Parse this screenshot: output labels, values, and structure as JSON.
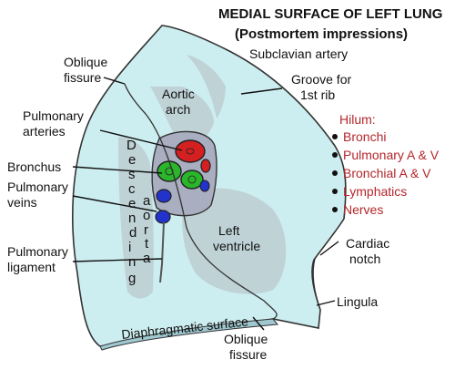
{
  "title": {
    "line1": "MEDIAL SURFACE OF LEFT  LUNG",
    "line2": "(Postmortem impressions)"
  },
  "labels": {
    "oblique_fissure_top_1": "Oblique",
    "oblique_fissure_top_2": "fissure",
    "subclavian_artery": "Subclavian artery",
    "groove_1": "Groove for",
    "groove_2": "1st rib",
    "aortic_arch_1": "Aortic",
    "aortic_arch_2": "arch",
    "pulmonary_arteries_1": "Pulmonary",
    "pulmonary_arteries_2": "arteries",
    "bronchus": "Bronchus",
    "pulmonary_veins_1": "Pulmonary",
    "pulmonary_veins_2": "veins",
    "pulmonary_ligament_1": "Pulmonary",
    "pulmonary_ligament_2": "ligament",
    "left_ventricle_1": "Left",
    "left_ventricle_2": "ventricle",
    "cardiac_notch_1": "Cardiac",
    "cardiac_notch_2": "notch",
    "lingula": "Lingula",
    "diaphragmatic_surface": "Diaphragmatic surface",
    "oblique_fissure_bottom_1": "Oblique",
    "oblique_fissure_bottom_2": "fissure",
    "descending": [
      "D",
      "e",
      "s",
      "c",
      "e",
      "n",
      "d",
      "i",
      "n",
      "g"
    ],
    "aorta": [
      "a",
      "o",
      "r",
      "t",
      "a"
    ]
  },
  "hilum": {
    "heading": "Hilum:",
    "items": [
      "Bronchi",
      "Pulmonary A & V",
      "Bronchial A & V",
      "Lymphatics",
      "Nerves"
    ]
  },
  "colors": {
    "lung_fill": "#cdeef0",
    "impression_fill": "#b9c8ce",
    "artery": "#d42020",
    "bronchus": "#2ab52a",
    "vein": "#2233cc",
    "hilum_text": "#b3262b"
  }
}
